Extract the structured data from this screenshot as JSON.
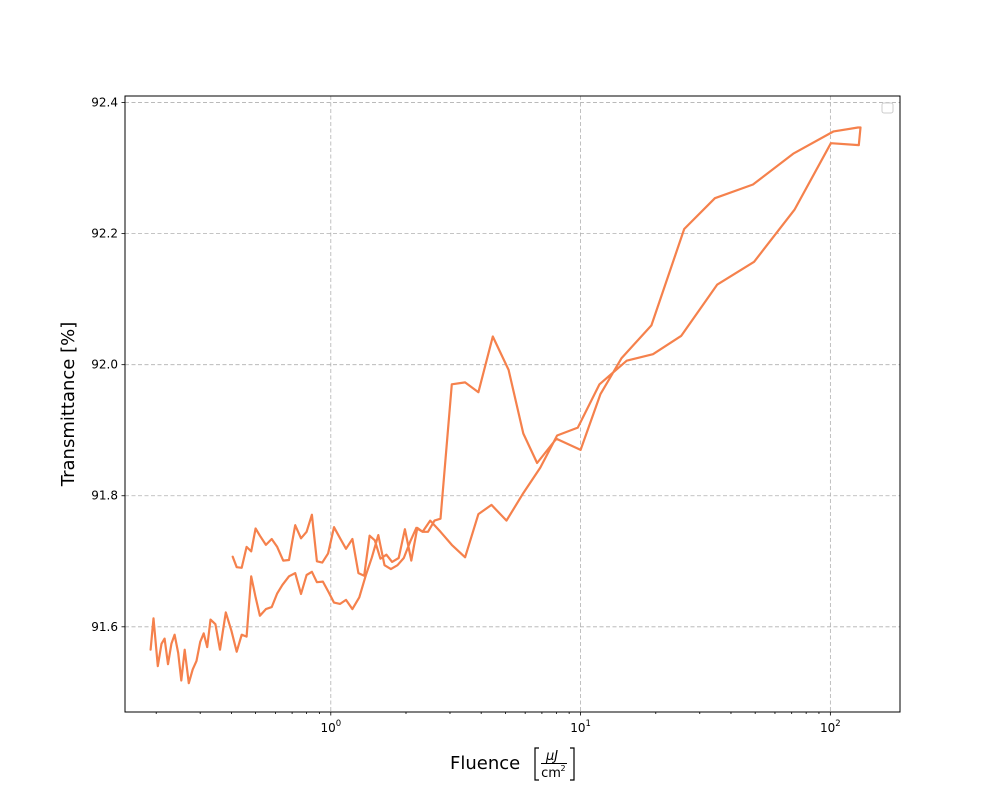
{
  "chart_data": {
    "type": "line",
    "title": "",
    "xlabel": "Fluence",
    "xlabel_unit_numerator": "μJ",
    "xlabel_unit_denominator": "cm",
    "xlabel_unit_exponent": "2",
    "ylabel": "Transmittance [%]",
    "xscale": "log",
    "xlim": [
      0.15,
      190
    ],
    "ylim": [
      91.47,
      92.41
    ],
    "grid": true,
    "legend": "top-right",
    "xticks": [
      1,
      10,
      100
    ],
    "xtick_labels": [
      {
        "base": "10",
        "exp": "0"
      },
      {
        "base": "10",
        "exp": "1"
      },
      {
        "base": "10",
        "exp": "2"
      }
    ],
    "yticks": [
      91.6,
      91.8,
      92.0,
      92.2,
      92.4
    ],
    "ytick_labels": [
      "91.6",
      "91.8",
      "92.0",
      "92.2",
      "92.4"
    ],
    "color": "#f5814c",
    "series": [
      {
        "name": "",
        "x": [
          0.19,
          0.195,
          0.203,
          0.21,
          0.216,
          0.223,
          0.23,
          0.237,
          0.245,
          0.252,
          0.26,
          0.27,
          0.28,
          0.29,
          0.3,
          0.31,
          0.32,
          0.33,
          0.345,
          0.36,
          0.38,
          0.4,
          0.42,
          0.44,
          0.46,
          0.48,
          0.5,
          0.52,
          0.55,
          0.58,
          0.61,
          0.64,
          0.68,
          0.72,
          0.76,
          0.8,
          0.84,
          0.88,
          0.93,
          0.98,
          1.03,
          1.09,
          1.15,
          1.22,
          1.3,
          1.38,
          1.46,
          1.55,
          1.64,
          1.74,
          1.85,
          1.96,
          2.08,
          2.2,
          2.33,
          2.5,
          2.75,
          3.05,
          3.45,
          3.9,
          4.4,
          5.05,
          5.9,
          6.9,
          8.05,
          9.75,
          11.9,
          15.3,
          19.5,
          25.3,
          35.2,
          49.5,
          72.0,
          100.5,
          130.0,
          132.0,
          129.0,
          103.0,
          71.0,
          49.0,
          34.5,
          26.0,
          19.2,
          14.6,
          12.0,
          10.0,
          8.0,
          6.7,
          5.9,
          5.15,
          4.45,
          3.9,
          3.45,
          3.05,
          2.75,
          2.6,
          2.45,
          2.33,
          2.22,
          2.1,
          1.98,
          1.87,
          1.76,
          1.67,
          1.58,
          1.5,
          1.43,
          1.36,
          1.29,
          1.22,
          1.15,
          1.09,
          1.03,
          0.975,
          0.925,
          0.88,
          0.84,
          0.8,
          0.76,
          0.72,
          0.68,
          0.645,
          0.61,
          0.58,
          0.55,
          0.52,
          0.5,
          0.48,
          0.46,
          0.44,
          0.42,
          0.405
        ],
        "y": [
          91.565,
          91.613,
          91.54,
          91.574,
          91.582,
          91.543,
          91.574,
          91.588,
          91.56,
          91.518,
          91.565,
          91.514,
          91.535,
          91.548,
          91.577,
          91.59,
          91.569,
          91.611,
          91.604,
          91.565,
          91.622,
          91.594,
          91.562,
          91.588,
          91.585,
          91.677,
          91.645,
          91.617,
          91.627,
          91.63,
          91.651,
          91.664,
          91.677,
          91.682,
          91.65,
          91.679,
          91.684,
          91.668,
          91.669,
          91.653,
          91.637,
          91.635,
          91.641,
          91.627,
          91.645,
          91.678,
          91.706,
          91.74,
          91.694,
          91.688,
          91.694,
          91.705,
          91.73,
          91.751,
          91.745,
          91.762,
          91.745,
          91.725,
          91.706,
          91.772,
          91.786,
          91.762,
          91.804,
          91.843,
          91.892,
          91.904,
          91.97,
          92.006,
          92.016,
          92.044,
          92.122,
          92.157,
          92.237,
          92.338,
          92.335,
          92.362,
          92.362,
          92.356,
          92.322,
          92.275,
          92.254,
          92.207,
          92.06,
          92.01,
          91.955,
          91.87,
          91.887,
          91.85,
          91.895,
          91.992,
          92.043,
          91.958,
          91.973,
          91.97,
          91.765,
          91.762,
          91.745,
          91.745,
          91.751,
          91.701,
          91.749,
          91.705,
          91.699,
          91.71,
          91.704,
          91.732,
          91.739,
          91.678,
          91.682,
          91.734,
          91.719,
          91.735,
          91.752,
          91.712,
          91.698,
          91.7,
          91.771,
          91.745,
          91.735,
          91.755,
          91.702,
          91.701,
          91.722,
          91.734,
          91.725,
          91.739,
          91.75,
          91.715,
          91.722,
          91.69,
          91.691,
          91.707
        ]
      }
    ]
  }
}
